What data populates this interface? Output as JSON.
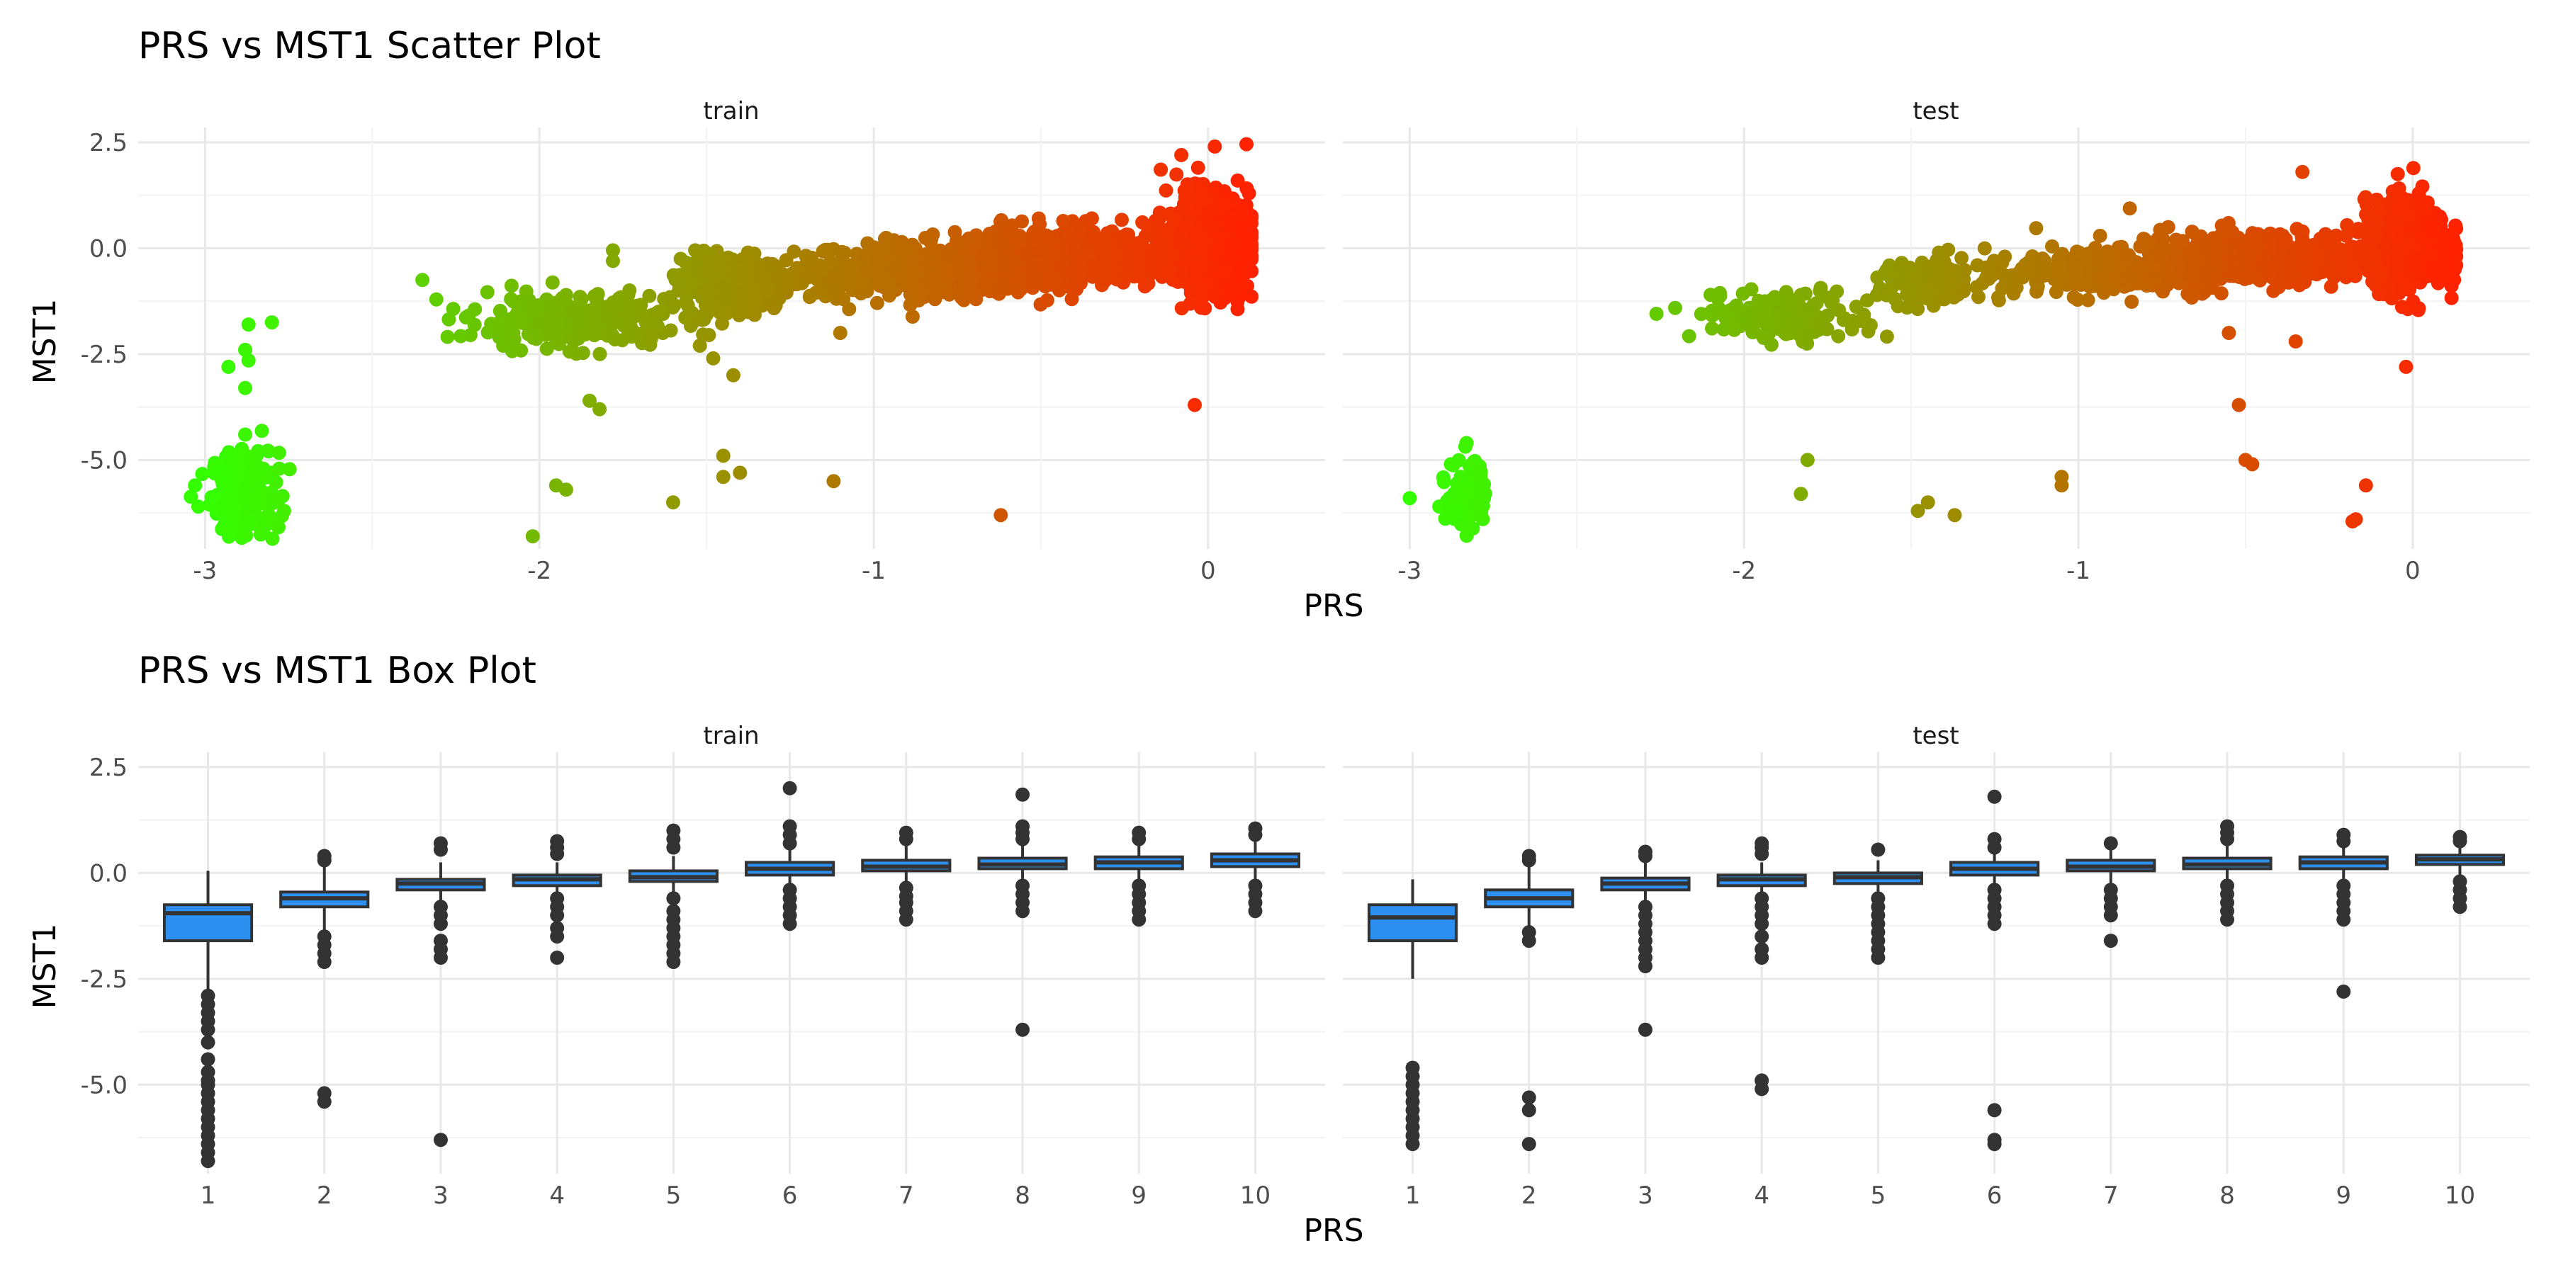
{
  "chart_data": [
    {
      "type": "scatter",
      "title": "PRS vs MST1 Scatter Plot",
      "xlabel": "PRS",
      "ylabel": "MST1",
      "facets": [
        "train",
        "test"
      ],
      "xlim": [
        -3.2,
        0.35
      ],
      "ylim": [
        -7.1,
        2.85
      ],
      "x_ticks": [
        -3,
        -2,
        -1,
        0
      ],
      "y_ticks": [
        2.5,
        0.0,
        -2.5,
        -5.0
      ],
      "x_tick_labels": [
        "-3",
        "-2",
        "-1",
        "0"
      ],
      "y_tick_labels": [
        "2.5",
        "0.0",
        "-2.5",
        "-5.0"
      ],
      "color_low": "#33ff00",
      "color_high": "#ff2200",
      "grid": true,
      "legend": "none",
      "clusters": {
        "train": [
          {
            "x": -2.88,
            "y": -5.8,
            "sx": 0.05,
            "sy": 0.5,
            "n": 220
          },
          {
            "x": -1.9,
            "y": -1.7,
            "sx": 0.15,
            "sy": 0.3,
            "n": 320
          },
          {
            "x": -1.43,
            "y": -0.85,
            "sx": 0.07,
            "sy": 0.28,
            "n": 380
          },
          {
            "x": -0.9,
            "y": -0.6,
            "sx": 0.22,
            "sy": 0.3,
            "n": 450
          },
          {
            "x": -0.42,
            "y": -0.2,
            "sx": 0.18,
            "sy": 0.35,
            "n": 550
          },
          {
            "x": 0.0,
            "y": 0.1,
            "sx": 0.06,
            "sy": 0.55,
            "n": 900
          }
        ],
        "test": [
          {
            "x": -2.83,
            "y": -5.8,
            "sx": 0.03,
            "sy": 0.45,
            "n": 90
          },
          {
            "x": -1.88,
            "y": -1.6,
            "sx": 0.13,
            "sy": 0.28,
            "n": 160
          },
          {
            "x": -1.45,
            "y": -0.85,
            "sx": 0.07,
            "sy": 0.28,
            "n": 140
          },
          {
            "x": -0.9,
            "y": -0.55,
            "sx": 0.2,
            "sy": 0.28,
            "n": 300
          },
          {
            "x": -0.45,
            "y": -0.2,
            "sx": 0.2,
            "sy": 0.32,
            "n": 400
          },
          {
            "x": -0.02,
            "y": 0.1,
            "sx": 0.06,
            "sy": 0.5,
            "n": 700
          }
        ]
      },
      "outliers": {
        "train": [
          [
            -2.35,
            -0.75
          ],
          [
            -2.12,
            -1.9
          ],
          [
            -2.12,
            -2.1
          ],
          [
            -2.02,
            -6.8
          ],
          [
            -1.92,
            -5.7
          ],
          [
            -1.95,
            -5.6
          ],
          [
            -1.85,
            -3.6
          ],
          [
            -1.82,
            -3.8
          ],
          [
            -1.78,
            -0.3
          ],
          [
            -1.78,
            -0.05
          ],
          [
            -1.6,
            -6.0
          ],
          [
            -1.52,
            -2.3
          ],
          [
            -1.48,
            -2.6
          ],
          [
            -1.45,
            -4.9
          ],
          [
            -1.42,
            -3.0
          ],
          [
            -1.45,
            -5.4
          ],
          [
            -1.4,
            -5.3
          ],
          [
            -1.12,
            -5.5
          ],
          [
            -1.1,
            -2.0
          ],
          [
            -0.62,
            -6.3
          ],
          [
            -0.04,
            -3.7
          ],
          [
            0.02,
            2.4
          ],
          [
            -0.08,
            2.2
          ],
          [
            -0.03,
            1.9
          ],
          [
            -2.8,
            -1.75
          ],
          [
            -2.87,
            -1.8
          ],
          [
            -2.88,
            -2.4
          ],
          [
            -2.93,
            -2.8
          ],
          [
            -2.87,
            -2.65
          ],
          [
            -2.88,
            -3.3
          ],
          [
            -2.88,
            -4.4
          ],
          [
            -3.03,
            -5.6
          ],
          [
            -3.02,
            -6.1
          ]
        ],
        "test": [
          [
            -2.1,
            -1.1
          ],
          [
            -1.81,
            -5.0
          ],
          [
            -1.83,
            -5.8
          ],
          [
            -1.45,
            -6.0
          ],
          [
            -1.48,
            -6.2
          ],
          [
            -1.37,
            -6.3
          ],
          [
            -1.05,
            -5.6
          ],
          [
            -1.05,
            -5.4
          ],
          [
            -1.22,
            -0.2
          ],
          [
            -1.12,
            -0.3
          ],
          [
            -0.52,
            -3.7
          ],
          [
            -0.5,
            -5.0
          ],
          [
            -0.48,
            -5.1
          ],
          [
            -0.33,
            1.8
          ],
          [
            -0.14,
            -5.6
          ],
          [
            -0.17,
            -6.4
          ],
          [
            -0.18,
            -6.45
          ],
          [
            -0.02,
            -2.8
          ],
          [
            -3.0,
            -5.9
          ],
          [
            -2.83,
            -4.6
          ],
          [
            -0.55,
            -2.0
          ],
          [
            -0.35,
            -2.2
          ]
        ]
      }
    },
    {
      "type": "box",
      "title": "PRS vs MST1 Box Plot",
      "xlabel": "PRS",
      "ylabel": "MST1",
      "facets": [
        "train",
        "test"
      ],
      "categories": [
        "1",
        "2",
        "3",
        "4",
        "5",
        "6",
        "7",
        "8",
        "9",
        "10"
      ],
      "ylim": [
        -7.1,
        2.85
      ],
      "y_ticks": [
        2.5,
        0.0,
        -2.5,
        -5.0
      ],
      "y_tick_labels": [
        "2.5",
        "0.0",
        "-2.5",
        "-5.0"
      ],
      "box_fill": "#2d8fef",
      "line_color": "#333333",
      "grid": true,
      "legend": "none",
      "series": [
        {
          "facet": "train",
          "boxes": [
            {
              "q1": -1.6,
              "median": -0.95,
              "q3": -0.75,
              "lo": -2.75,
              "hi": 0.05
            },
            {
              "q1": -0.8,
              "median": -0.6,
              "q3": -0.45,
              "lo": -1.5,
              "hi": 0.25
            },
            {
              "q1": -0.4,
              "median": -0.25,
              "q3": -0.15,
              "lo": -0.75,
              "hi": 0.25
            },
            {
              "q1": -0.3,
              "median": -0.15,
              "q3": -0.05,
              "lo": -0.6,
              "hi": 0.25
            },
            {
              "q1": -0.2,
              "median": -0.1,
              "q3": 0.05,
              "lo": -0.55,
              "hi": 0.4
            },
            {
              "q1": -0.05,
              "median": 0.1,
              "q3": 0.25,
              "lo": -0.4,
              "hi": 0.65
            },
            {
              "q1": 0.05,
              "median": 0.15,
              "q3": 0.3,
              "lo": -0.3,
              "hi": 0.7
            },
            {
              "q1": 0.1,
              "median": 0.2,
              "q3": 0.35,
              "lo": -0.25,
              "hi": 0.75
            },
            {
              "q1": 0.1,
              "median": 0.25,
              "q3": 0.38,
              "lo": -0.2,
              "hi": 0.75
            },
            {
              "q1": 0.15,
              "median": 0.3,
              "q3": 0.45,
              "lo": -0.2,
              "hi": 0.85
            }
          ],
          "outliers": [
            [
              -2.9,
              -3.1,
              -3.3,
              -3.5,
              -3.7,
              -4.0,
              -4.4,
              -4.7,
              -4.9,
              -5.0,
              -5.2,
              -5.4,
              -5.6,
              -5.8,
              -6.0,
              -6.2,
              -6.4,
              -6.6,
              -6.8
            ],
            [
              0.3,
              0.4,
              -1.5,
              -1.7,
              -1.9,
              -2.1,
              -5.2,
              -5.4
            ],
            [
              0.55,
              0.7,
              -0.8,
              -1.0,
              -1.2,
              -1.6,
              -1.8,
              -2.0,
              -6.3
            ],
            [
              0.45,
              0.6,
              0.75,
              -0.6,
              -0.8,
              -1.0,
              -1.3,
              -1.5,
              -2.0
            ],
            [
              0.6,
              0.8,
              1.0,
              -0.6,
              -0.9,
              -1.1,
              -1.3,
              -1.5,
              -1.7,
              -1.9,
              -2.1
            ],
            [
              0.7,
              0.9,
              1.1,
              2.0,
              -0.4,
              -0.6,
              -0.8,
              -1.0,
              -1.2
            ],
            [
              0.8,
              0.95,
              -0.35,
              -0.55,
              -0.7,
              -0.9,
              -1.1
            ],
            [
              0.8,
              0.95,
              1.1,
              1.85,
              -0.3,
              -0.5,
              -0.7,
              -0.9,
              -3.7
            ],
            [
              0.8,
              0.95,
              -0.3,
              -0.5,
              -0.7,
              -0.9,
              -1.1
            ],
            [
              0.9,
              1.05,
              -0.3,
              -0.5,
              -0.7,
              -0.9
            ]
          ]
        },
        {
          "facet": "test",
          "boxes": [
            {
              "q1": -1.6,
              "median": -1.05,
              "q3": -0.75,
              "lo": -2.5,
              "hi": -0.15
            },
            {
              "q1": -0.8,
              "median": -0.6,
              "q3": -0.4,
              "lo": -1.4,
              "hi": 0.2
            },
            {
              "q1": -0.4,
              "median": -0.25,
              "q3": -0.12,
              "lo": -0.8,
              "hi": 0.25
            },
            {
              "q1": -0.3,
              "median": -0.15,
              "q3": -0.05,
              "lo": -0.6,
              "hi": 0.25
            },
            {
              "q1": -0.25,
              "median": -0.1,
              "q3": 0.0,
              "lo": -0.55,
              "hi": 0.3
            },
            {
              "q1": -0.05,
              "median": 0.1,
              "q3": 0.25,
              "lo": -0.4,
              "hi": 0.55
            },
            {
              "q1": 0.05,
              "median": 0.15,
              "q3": 0.3,
              "lo": -0.3,
              "hi": 0.6
            },
            {
              "q1": 0.1,
              "median": 0.2,
              "q3": 0.35,
              "lo": -0.2,
              "hi": 0.7
            },
            {
              "q1": 0.1,
              "median": 0.25,
              "q3": 0.38,
              "lo": -0.2,
              "hi": 0.7
            },
            {
              "q1": 0.2,
              "median": 0.32,
              "q3": 0.42,
              "lo": -0.1,
              "hi": 0.6
            }
          ],
          "outliers": [
            [
              -4.6,
              -4.8,
              -5.0,
              -5.2,
              -5.4,
              -5.6,
              -5.8,
              -6.0,
              -6.2,
              -6.4
            ],
            [
              0.3,
              0.4,
              -1.4,
              -1.6,
              -5.3,
              -5.6,
              -6.4
            ],
            [
              0.4,
              0.5,
              -0.8,
              -1.0,
              -1.2,
              -1.4,
              -1.6,
              -1.8,
              -2.0,
              -2.2,
              -3.7
            ],
            [
              0.45,
              0.6,
              0.7,
              -0.6,
              -0.8,
              -1.0,
              -1.2,
              -1.5,
              -1.8,
              -2.0,
              -4.9,
              -5.1
            ],
            [
              0.55,
              -0.6,
              -0.8,
              -1.0,
              -1.2,
              -1.4,
              -1.6,
              -1.8,
              -2.0
            ],
            [
              0.6,
              0.8,
              1.8,
              -0.4,
              -0.6,
              -0.8,
              -1.0,
              -1.2,
              -5.6,
              -6.3,
              -6.4
            ],
            [
              0.7,
              -0.4,
              -0.6,
              -0.8,
              -1.0,
              -1.6
            ],
            [
              0.8,
              0.95,
              1.1,
              -0.3,
              -0.5,
              -0.7,
              -0.9,
              -1.1
            ],
            [
              0.75,
              0.9,
              -0.3,
              -0.5,
              -0.7,
              -0.9,
              -1.1,
              -2.8
            ],
            [
              0.75,
              0.85,
              -0.2,
              -0.4,
              -0.6,
              -0.8
            ]
          ]
        }
      ]
    }
  ]
}
